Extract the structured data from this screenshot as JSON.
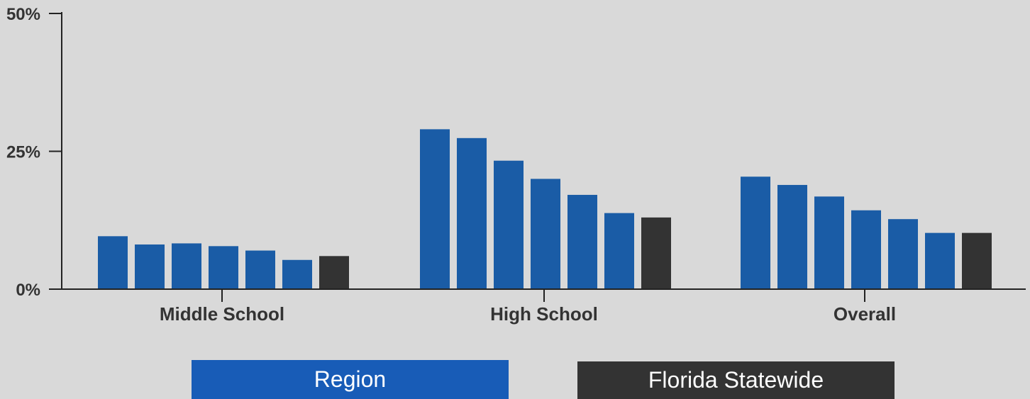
{
  "chart_data": {
    "type": "bar",
    "categories": [
      "Middle School",
      "High School",
      "Overall"
    ],
    "yticks": [
      "0%",
      "25%",
      "50%"
    ],
    "ylim": [
      0,
      50
    ],
    "grid": false,
    "legend_placement": "bottom-center",
    "colors": {
      "region": "#1a5ca6",
      "statewide": "#333333",
      "legend_region": "#185cb7"
    },
    "series": [
      {
        "name": "Region",
        "values": [
          [
            9.6,
            8.1,
            8.3,
            7.8,
            7.0,
            5.3
          ],
          [
            29.0,
            27.4,
            23.3,
            20.0,
            17.1,
            13.8
          ],
          [
            20.4,
            18.9,
            16.8,
            14.3,
            12.7,
            10.2
          ]
        ]
      },
      {
        "name": "Florida Statewide",
        "values": [
          6.0,
          13.0,
          10.2
        ]
      }
    ]
  },
  "legend": {
    "items": [
      {
        "label": "Region"
      },
      {
        "label": "Florida Statewide"
      }
    ]
  }
}
